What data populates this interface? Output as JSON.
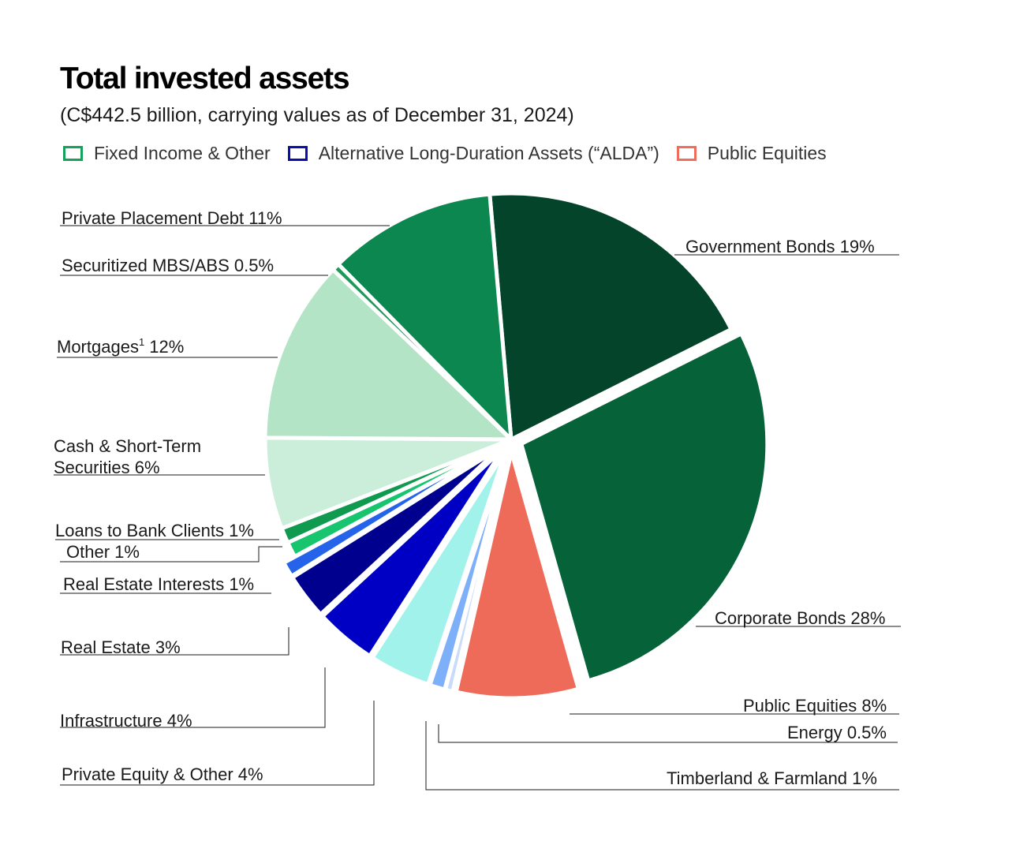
{
  "chart_data": {
    "type": "pie",
    "title": "Total invested assets",
    "subtitle": "(C$442.5 billion, carrying values as of December 31, 2024)",
    "legend": {
      "placement": "top-left",
      "entries": [
        {
          "name": "Fixed Income & Other",
          "color": "#15A25A"
        },
        {
          "name": "Alternative Long-Duration Assets (“ALDA”)",
          "color": "#0A0FA8"
        },
        {
          "name": "Public Equities",
          "color": "#EF6D5C"
        }
      ]
    },
    "slices": [
      {
        "label": "Government Bonds 19%",
        "value": 19,
        "group": "Fixed Income & Other",
        "color": "#03442A"
      },
      {
        "label": "Corporate Bonds 28%",
        "value": 28,
        "group": "Fixed Income & Other",
        "color": "#066238"
      },
      {
        "label": "Public Equities 8%",
        "value": 8,
        "group": "Public Equities",
        "color": "#EE6A59"
      },
      {
        "label": "Energy 0.5%",
        "value": 0.5,
        "group": "Alternative Long-Duration Assets (“ALDA”)",
        "color": "#C8DBF9"
      },
      {
        "label": "Timberland & Farmland 1%",
        "value": 1,
        "group": "Alternative Long-Duration Assets (“ALDA”)",
        "color": "#7DB0F8"
      },
      {
        "label": "Private Equity & Other 4%",
        "value": 4,
        "group": "Alternative Long-Duration Assets (“ALDA”)",
        "color": "#A2F2EC"
      },
      {
        "label": "Infrastructure 4%",
        "value": 4,
        "group": "Alternative Long-Duration Assets (“ALDA”)",
        "color": "#0000C4"
      },
      {
        "label": "Real Estate 3%",
        "value": 3,
        "group": "Alternative Long-Duration Assets (“ALDA”)",
        "color": "#00008F"
      },
      {
        "label": "Real Estate Interests 1%",
        "value": 1,
        "group": "Alternative Long-Duration Assets (“ALDA”)",
        "color": "#2563EB"
      },
      {
        "label": "Other 1%",
        "value": 1,
        "group": "Fixed Income & Other",
        "color": "#17C56F"
      },
      {
        "label": "Loans to Bank Clients 1%",
        "value": 1,
        "group": "Fixed Income & Other",
        "color": "#0F9A50"
      },
      {
        "label": "Cash & Short-Term Securities 6%",
        "value": 6,
        "group": "Fixed Income & Other",
        "color": "#CBEEDA"
      },
      {
        "label": "Mortgages¹ 12%",
        "value": 12,
        "group": "Fixed Income & Other",
        "color": "#B3E4C6"
      },
      {
        "label": "Securitized MBS/ABS 0.5%",
        "value": 0.5,
        "group": "Fixed Income & Other",
        "color": "#1E9A58"
      },
      {
        "label": "Private Placement Debt 11%",
        "value": 11,
        "group": "Fixed Income & Other",
        "color": "#0B874F"
      }
    ]
  }
}
